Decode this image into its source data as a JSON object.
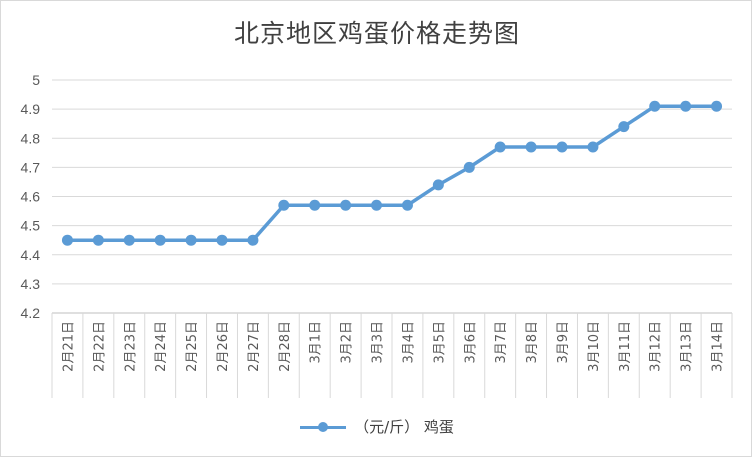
{
  "chart_data": {
    "type": "line",
    "title": "北京地区鸡蛋价格走势图",
    "xlabel": "",
    "ylabel": "",
    "categories": [
      "2月21日",
      "2月22日",
      "2月23日",
      "2月24日",
      "2月25日",
      "2月26日",
      "2月27日",
      "2月28日",
      "3月1日",
      "3月2日",
      "3月3日",
      "3月4日",
      "3月5日",
      "3月6日",
      "3月7日",
      "3月8日",
      "3月9日",
      "3月10日",
      "3月11日",
      "3月12日",
      "3月13日",
      "3月14日"
    ],
    "series": [
      {
        "name": "（元/斤） 鸡蛋",
        "values": [
          4.45,
          4.45,
          4.45,
          4.45,
          4.45,
          4.45,
          4.45,
          4.57,
          4.57,
          4.57,
          4.57,
          4.57,
          4.64,
          4.7,
          4.77,
          4.77,
          4.77,
          4.77,
          4.84,
          4.91,
          4.91,
          4.91
        ]
      }
    ],
    "ylim": [
      4.2,
      5.0
    ],
    "yticks": [
      "4.2",
      "4.3",
      "4.4",
      "4.5",
      "4.6",
      "4.7",
      "4.8",
      "4.9",
      "5"
    ],
    "grid": true,
    "legend": "bottom",
    "line_color": "#5b9bd5"
  }
}
